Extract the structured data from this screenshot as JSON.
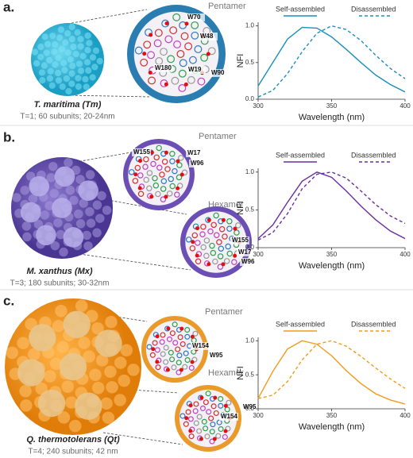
{
  "panels": [
    {
      "label": "a.",
      "organism": "T. maritima (Tm)",
      "details": "T=1; 60 subunits; 20-24nm",
      "views": [
        {
          "title": "Pentamer",
          "residues": [
            "W70",
            "W48",
            "W180",
            "W19",
            "W90"
          ]
        }
      ]
    },
    {
      "label": "b.",
      "organism": "M. xanthus (Mx)",
      "details": "T=3; 180 subunits; 30-32nm",
      "views": [
        {
          "title": "Pentamer",
          "residues": [
            "W155",
            "W17",
            "W96"
          ]
        },
        {
          "title": "Hexamer",
          "residues": [
            "W155",
            "W17",
            "W96"
          ]
        }
      ]
    },
    {
      "label": "c.",
      "organism": "Q. thermotolerans (Qt)",
      "details": "T=4; 240 subunits; 42 nm",
      "views": [
        {
          "title": "Pentamer",
          "residues": [
            "W154",
            "W95"
          ]
        },
        {
          "title": "Hexamer",
          "residues": [
            "W154",
            "W95"
          ]
        }
      ]
    }
  ],
  "chart_data": [
    {
      "type": "line",
      "xlabel": "Wavelength (nm)",
      "ylabel": "NFI",
      "legend": "top",
      "x": [
        300,
        310,
        320,
        330,
        340,
        350,
        360,
        370,
        380,
        390,
        400
      ],
      "xlim": [
        300,
        400
      ],
      "xticks": [
        300,
        350,
        400
      ],
      "ylim": [
        0,
        1.05
      ],
      "yticks": [
        {
          "value": 0,
          "label": "0.0"
        },
        {
          "value": 0.5,
          "label": "0.5"
        },
        {
          "value": 1,
          "label": "1.0"
        }
      ],
      "series": [
        {
          "name": "Self-assembled",
          "color": "#1a8fb9",
          "linestyle": "solid",
          "values": [
            0.18,
            0.5,
            0.82,
            0.98,
            0.97,
            0.85,
            0.68,
            0.5,
            0.33,
            0.2,
            0.1
          ]
        },
        {
          "name": "Disassembled",
          "color": "#1a8fb9",
          "linestyle": "dashed",
          "values": [
            0.03,
            0.12,
            0.35,
            0.65,
            0.9,
            1.0,
            0.95,
            0.8,
            0.6,
            0.42,
            0.28
          ]
        }
      ]
    },
    {
      "type": "line",
      "xlabel": "Wavelength (nm)",
      "ylabel": "NFI",
      "legend": "top",
      "x": [
        300,
        310,
        320,
        330,
        340,
        350,
        360,
        370,
        380,
        390,
        400
      ],
      "xlim": [
        300,
        400
      ],
      "xticks": [
        300,
        350,
        400
      ],
      "ylim": [
        0,
        1.05
      ],
      "yticks": [
        {
          "value": 0,
          "label": "0.0"
        },
        {
          "value": 0.5,
          "label": "0.5"
        },
        {
          "value": 1,
          "label": "1.0"
        }
      ],
      "series": [
        {
          "name": "Self-assembled",
          "color": "#6a2fa0",
          "linestyle": "solid",
          "values": [
            0.12,
            0.3,
            0.6,
            0.88,
            1.0,
            0.93,
            0.75,
            0.55,
            0.37,
            0.22,
            0.12
          ]
        },
        {
          "name": "Disassembled",
          "color": "#6a2fa0",
          "linestyle": "dashed",
          "values": [
            0.1,
            0.2,
            0.45,
            0.78,
            0.97,
            1.0,
            0.92,
            0.75,
            0.57,
            0.42,
            0.32
          ]
        }
      ]
    },
    {
      "type": "line",
      "xlabel": "Wavelength (nm)",
      "ylabel": "NFI",
      "legend": "top",
      "x": [
        300,
        310,
        320,
        330,
        340,
        350,
        360,
        370,
        380,
        390,
        400
      ],
      "xlim": [
        300,
        400
      ],
      "xticks": [
        300,
        350,
        400
      ],
      "ylim": [
        0,
        1.05
      ],
      "yticks": [
        {
          "value": 0,
          "label": "0.0"
        },
        {
          "value": 0.5,
          "label": "0.5"
        },
        {
          "value": 1,
          "label": "1.0"
        }
      ],
      "series": [
        {
          "name": "Self-assembled",
          "color": "#f39a1c",
          "linestyle": "solid",
          "values": [
            0.15,
            0.55,
            0.88,
            1.0,
            0.95,
            0.78,
            0.56,
            0.37,
            0.22,
            0.13,
            0.07
          ]
        },
        {
          "name": "Disassembled",
          "color": "#f39a1c",
          "linestyle": "dashed",
          "values": [
            0.15,
            0.2,
            0.4,
            0.72,
            0.95,
            1.0,
            0.92,
            0.77,
            0.6,
            0.44,
            0.3
          ]
        }
      ]
    }
  ]
}
